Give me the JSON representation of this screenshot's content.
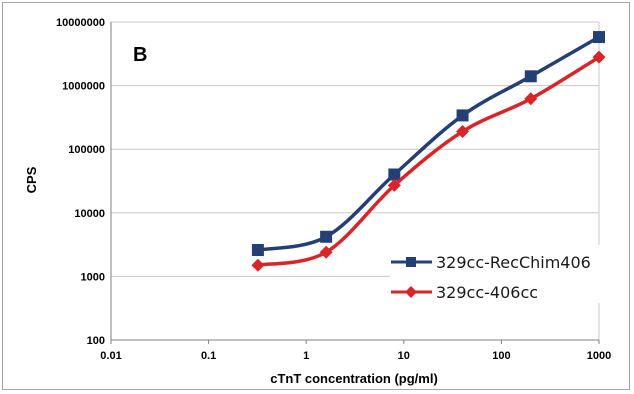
{
  "chart_data": {
    "type": "line",
    "panel_label": "B",
    "xlabel": "cTnT concentration (pg/ml)",
    "ylabel": "CPS",
    "xscale": "log",
    "yscale": "log",
    "xlim": [
      0.01,
      1000
    ],
    "ylim": [
      100,
      10000000
    ],
    "x_ticks": [
      "0.01",
      "0.1",
      "1",
      "10",
      "100",
      "1000"
    ],
    "y_ticks": [
      "100",
      "1000",
      "10000",
      "100000",
      "1000000",
      "10000000"
    ],
    "grid": "horizontal",
    "legend_position": "lower-right",
    "series": [
      {
        "name": "329cc-RecChim406",
        "color": "#243f73",
        "marker": "square",
        "x": [
          0.32,
          1.6,
          8,
          40,
          200,
          1000
        ],
        "y": [
          2600,
          4200,
          40000,
          340000,
          1400000,
          5800000
        ]
      },
      {
        "name": "329cc-406cc",
        "color": "#d9252a",
        "marker": "diamond",
        "x": [
          0.32,
          1.6,
          8,
          40,
          200,
          1000
        ],
        "y": [
          1500,
          2400,
          27000,
          190000,
          620000,
          2800000
        ]
      }
    ]
  }
}
